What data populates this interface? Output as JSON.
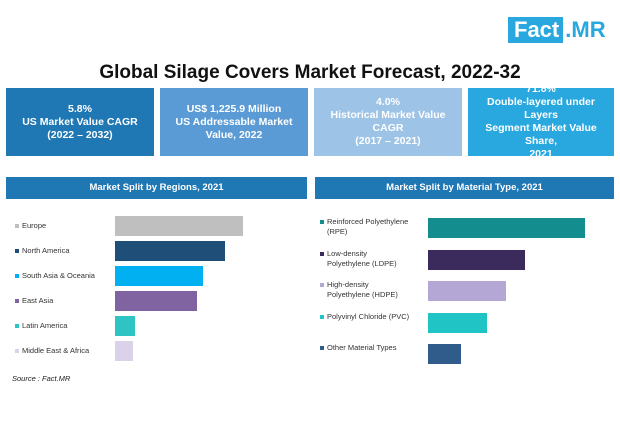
{
  "logo": {
    "fact": "Fact",
    "mr": ".MR"
  },
  "title": "Global Silage Covers Market Forecast, 2022-32",
  "kpis": [
    {
      "lines": [
        "5.8%",
        "US Market Value CAGR",
        "(2022 – 2032)"
      ],
      "color": "#1f77b4"
    },
    {
      "lines": [
        "US$ 1,225.9 Million",
        "US Addressable  Market",
        "Value,  2022"
      ],
      "color": "#5b9bd5"
    },
    {
      "lines": [
        "4.0%",
        "Historical  Market  Value",
        "CAGR",
        "(2017 – 2021)"
      ],
      "color": "#9dc3e6"
    },
    {
      "lines": [
        "71.8%",
        "Double-layered under Layers",
        "Segment Market Value Share,",
        "2021"
      ],
      "color": "#29a8e0"
    }
  ],
  "panels": {
    "regions_title": "Market Split by Regions, 2021",
    "material_title": "Market Split by Material Type, 2021"
  },
  "chart_data": [
    {
      "type": "bar",
      "title": "Market Split by Regions, 2021",
      "categories": [
        "Europe",
        "North America",
        "South Asia & Oceania",
        "East Asia",
        "Latin America",
        "Middle East & Africa"
      ],
      "values": [
        32,
        27.5,
        22,
        20.5,
        5,
        4.5
      ],
      "colors": [
        "#bfbfbf",
        "#1f4e79",
        "#00b0f0",
        "#8064a2",
        "#2ec4c4",
        "#d9d2e9"
      ],
      "orientation": "horizontal"
    },
    {
      "type": "bar",
      "title": "Market Split by Material Type, 2021",
      "categories": [
        "Reinforced Polyethylene (RPE)",
        "Low-density Polyethylene (LDPE)",
        "High-density Polyethylene (HDPE)",
        "Polyvinyl Chloride (PVC)",
        "Other Material Types"
      ],
      "legend_lines": [
        [
          "Reinforced Polyethylene",
          "(RPE)"
        ],
        [
          "Low-density",
          "Polyethylene (LDPE)"
        ],
        [
          "High-density",
          "Polyethylene (HDPE)"
        ],
        [
          "Polyvinyl Chloride (PVC)"
        ],
        [
          "Other Material Types"
        ]
      ],
      "values": [
        33,
        20.5,
        16.5,
        12.5,
        7
      ],
      "colors": [
        "#138d8d",
        "#3b2a5c",
        "#b4a7d6",
        "#20c4c4",
        "#2f5c8a"
      ],
      "orientation": "horizontal"
    }
  ],
  "source": "Source : Fact.MR"
}
